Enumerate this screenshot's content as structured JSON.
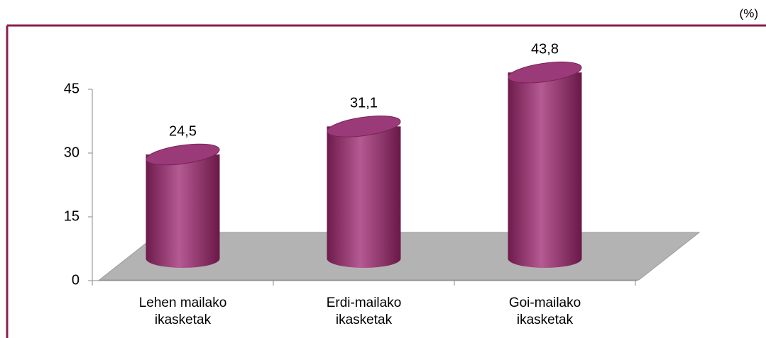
{
  "chart_data": {
    "type": "bar3d",
    "unit_label": "(%)",
    "categories": [
      "Lehen mailako ikasketak",
      "Erdi-mailako ikasketak",
      "Goi-mailako ikasketak"
    ],
    "values": [
      24.5,
      31.1,
      43.8
    ],
    "value_labels": [
      "24,5",
      "31,1",
      "43,8"
    ],
    "color": "#9b3a78",
    "ylim": [
      0,
      45
    ],
    "yticks": [
      0,
      15,
      30,
      45
    ]
  }
}
